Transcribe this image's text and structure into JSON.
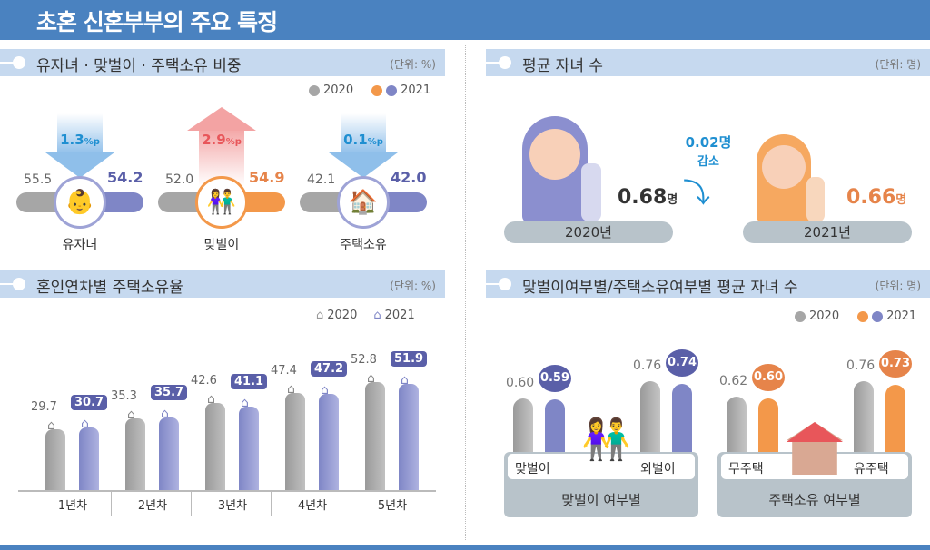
{
  "title": "초혼 신혼부부의 주요 특징",
  "colors": {
    "y2020": "#a6a6a6",
    "y2021_purple": "#7f86c6",
    "y2021_orange": "#f3984a",
    "header": "#4a82c0",
    "section": "#c6d9ef",
    "down": "#1f8fd1",
    "up": "#e8565a"
  },
  "legend": {
    "y2020": "2020",
    "y2021": "2021"
  },
  "chart_data": [
    {
      "type": "table",
      "section_title": "유자녀 · 맞벌이 · 주택소유 비중",
      "unit": "(단위: %)",
      "items": [
        {
          "label": "유자녀",
          "v2020": "55.5",
          "v2021": "54.2",
          "change": "1.3",
          "change_unit": "%p",
          "direction": "down",
          "icon": "baby-icon",
          "color2021": "#7f86c6"
        },
        {
          "label": "맞벌이",
          "v2020": "52.0",
          "v2021": "54.9",
          "change": "2.9",
          "change_unit": "%p",
          "direction": "up",
          "icon": "couple-icon",
          "color2021": "#f3984a"
        },
        {
          "label": "주택소유",
          "v2020": "42.1",
          "v2021": "42.0",
          "change": "0.1",
          "change_unit": "%p",
          "direction": "down",
          "icon": "house-icon",
          "color2021": "#7f86c6"
        }
      ]
    },
    {
      "type": "bar",
      "section_title": "혼인연차별 주택소유율",
      "unit": "(단위: %)",
      "categories": [
        "1년차",
        "2년차",
        "3년차",
        "4년차",
        "5년차"
      ],
      "series": [
        {
          "name": "2020",
          "values": [
            29.7,
            35.3,
            42.6,
            47.4,
            52.8
          ]
        },
        {
          "name": "2021",
          "values": [
            30.7,
            35.7,
            41.1,
            47.2,
            51.9
          ]
        }
      ],
      "ylim": [
        0,
        60
      ]
    },
    {
      "type": "bar",
      "section_title": "평균 자녀 수",
      "unit": "(단위: 명)",
      "categories": [
        "2020년",
        "2021년"
      ],
      "values": [
        0.68,
        0.66
      ],
      "value_labels": [
        "0.68",
        "0.66"
      ],
      "value_unit": "명",
      "change": "0.02명",
      "change_label": "감소"
    },
    {
      "type": "bar",
      "section_title": "맞벌이여부별/주택소유여부별 평균 자녀 수",
      "unit": "(단위: 명)",
      "groups": [
        {
          "title": "맞벌이 여부별",
          "categories": [
            "맞벌이",
            "외벌이"
          ],
          "color2021": "#7f86c6",
          "series": [
            {
              "name": "2020",
              "values": [
                0.6,
                0.76
              ]
            },
            {
              "name": "2021",
              "values": [
                0.59,
                0.74
              ]
            }
          ]
        },
        {
          "title": "주택소유 여부별",
          "categories": [
            "무주택",
            "유주택"
          ],
          "color2021": "#f3984a",
          "series": [
            {
              "name": "2020",
              "values": [
                0.62,
                0.76
              ]
            },
            {
              "name": "2021",
              "values": [
                0.6,
                0.73
              ]
            }
          ]
        }
      ]
    }
  ]
}
